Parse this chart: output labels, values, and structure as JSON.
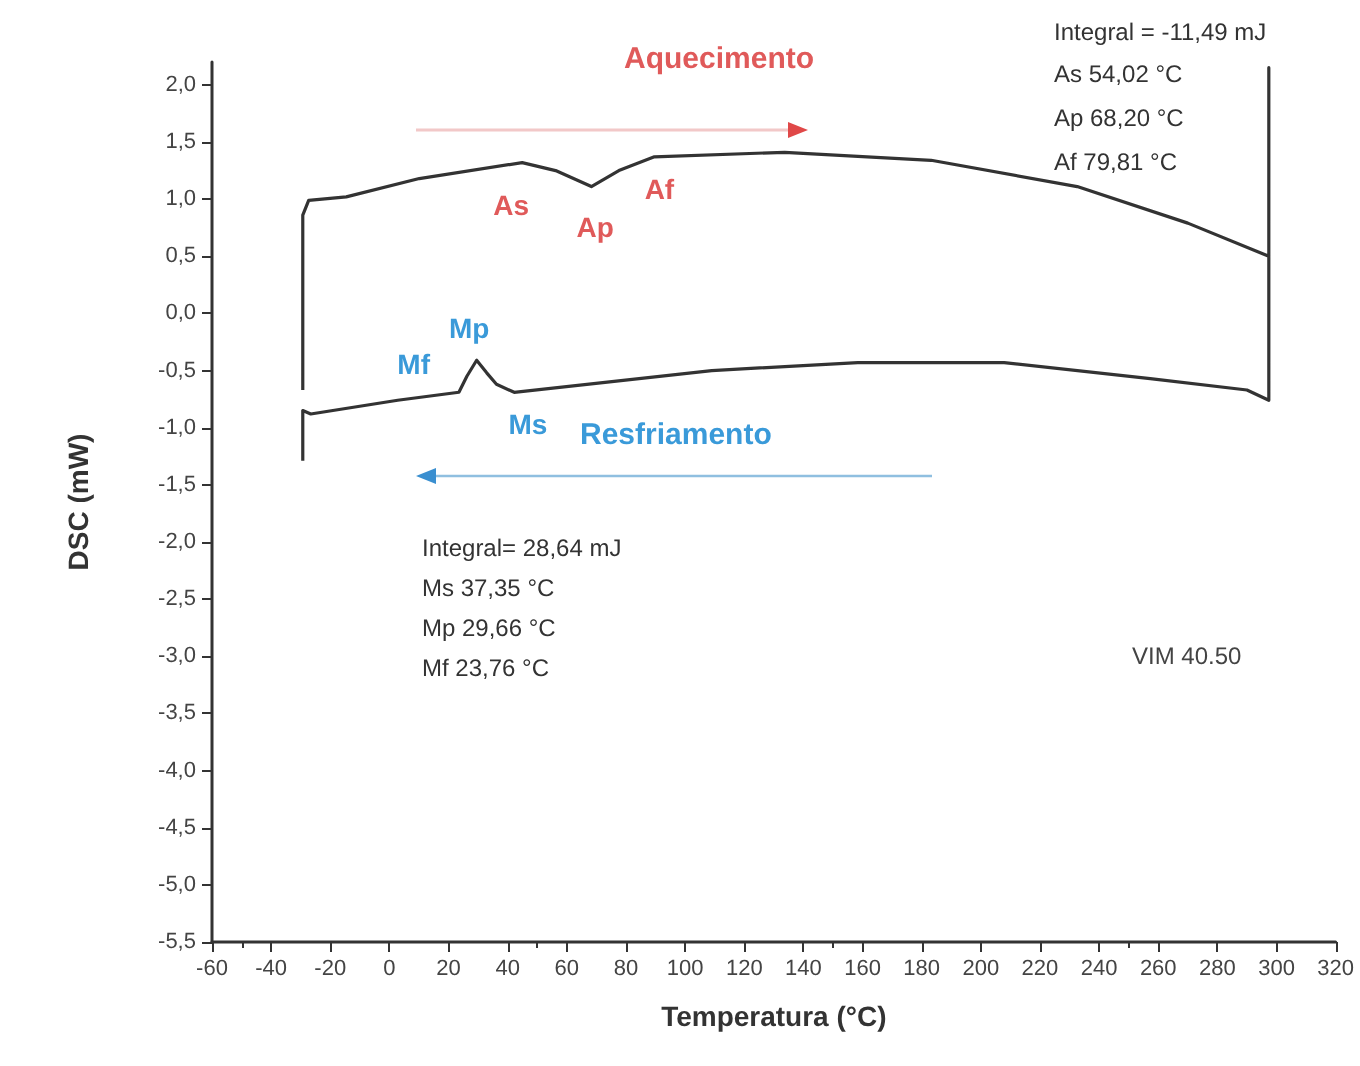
{
  "chart_data": {
    "type": "line",
    "xlabel": "Temperatura (°C)",
    "ylabel": "DSC (mW)",
    "series": [
      {
        "color": "#333333",
        "x": [
          -29.3,
          -29.3,
          -27.3,
          -14.6,
          10.1,
          44.9,
          56.2,
          68.3,
          77.6,
          89.6,
          133.7,
          183.2,
          232.6,
          270,
          297.4,
          297.4,
          297.4,
          290,
          257.3,
          207.9,
          158.4,
          109,
          42.2,
          36.2,
          32.9,
          29.5,
          26.2,
          23.5,
          2.8,
          -26.6,
          -29.3,
          -29.3
        ],
        "values": [
          -0.67,
          0.86,
          0.99,
          1.02,
          1.18,
          1.32,
          1.25,
          1.11,
          1.25,
          1.37,
          1.41,
          1.34,
          1.11,
          0.79,
          0.5,
          2.15,
          -0.76,
          -0.67,
          -0.57,
          -0.43,
          -0.43,
          -0.5,
          -0.69,
          -0.62,
          -0.52,
          -0.41,
          -0.55,
          -0.69,
          -0.76,
          -0.88,
          -0.85,
          -1.29
        ]
      }
    ],
    "xlim": [
      -60,
      320
    ],
    "xticks": [
      -60,
      -40,
      -20,
      0,
      20,
      40,
      60,
      80,
      100,
      120,
      140,
      160,
      180,
      200,
      220,
      240,
      260,
      280,
      300,
      320
    ],
    "ylim": [
      -5.5,
      2.2
    ],
    "yticks": [
      {
        "value": -5.5,
        "label": "-5,5"
      },
      {
        "value": -5,
        "label": "-5,0"
      },
      {
        "value": -4.5,
        "label": "-4,5"
      },
      {
        "value": -4,
        "label": "-4,0"
      },
      {
        "value": -3.5,
        "label": "-3,5"
      },
      {
        "value": -3,
        "label": "-3,0"
      },
      {
        "value": -2.5,
        "label": "-2,5"
      },
      {
        "value": -2,
        "label": "-2,0"
      },
      {
        "value": -1.5,
        "label": "-1,5"
      },
      {
        "value": -1,
        "label": "-1,0"
      },
      {
        "value": -0.5,
        "label": "-0,5"
      },
      {
        "value": 0,
        "label": "0,0"
      },
      {
        "value": 0.5,
        "label": "0,5"
      },
      {
        "value": 1,
        "label": "1,0"
      },
      {
        "value": 1.5,
        "label": "1,5"
      },
      {
        "value": 2,
        "label": "2,0"
      }
    ],
    "grid": false,
    "marker": "none",
    "line_style": "solid",
    "annotations": [
      "Aquecimento",
      "Integral = -11,49 mJ",
      "As 54,02 °C",
      "Ap 68,20 °C",
      "Af 79,81 °C",
      "Resfriamento",
      "Integral= 28,64 mJ",
      "Ms 37,35 °C",
      "Mp 29,66 °C",
      "Mf 23,76 °C",
      "VIM 40.50",
      {
        "text": "As",
        "x": 54.02,
        "y": 1.28
      },
      {
        "text": "Ap",
        "x": 68.2,
        "y": 1.11
      },
      {
        "text": "Af",
        "x": 79.81,
        "y": 1.28
      },
      {
        "text": "Ms",
        "x": 37.35,
        "y": -0.62
      },
      {
        "text": "Mp",
        "x": 29.66,
        "y": -0.41
      },
      {
        "text": "Mf",
        "x": 23.76,
        "y": -0.69
      }
    ]
  }
}
